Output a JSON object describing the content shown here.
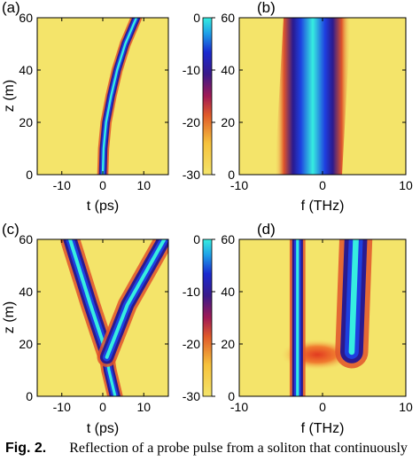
{
  "caption": {
    "label": "Fig. 2.",
    "text": "Reflection of a probe pulse from a soliton that continuously"
  },
  "chart_data": [
    {
      "type": "heatmap",
      "panel_label": "(a)",
      "xlabel": "t (ps)",
      "ylabel": "z (m)",
      "xlim": [
        -16,
        16
      ],
      "ylim": [
        0,
        60
      ],
      "xticks": [
        -10,
        0,
        10
      ],
      "yticks": [
        0,
        20,
        40,
        60
      ],
      "content": "Narrow soliton trace starting near t = 0 at z = 0 and curving to t ≈ 8 ps at z = 60 m",
      "traces": [
        {
          "name": "soliton",
          "points": [
            [
              0,
              0
            ],
            [
              0.2,
              10
            ],
            [
              0.8,
              20
            ],
            [
              2,
              30
            ],
            [
              3.5,
              40
            ],
            [
              5.5,
              50
            ],
            [
              8.2,
              60
            ]
          ],
          "width": 0.8
        }
      ]
    },
    {
      "type": "heatmap",
      "panel_label": "(b)",
      "xlabel": "f (THz)",
      "ylabel": "",
      "xlim": [
        -10,
        10
      ],
      "ylim": [
        0,
        60
      ],
      "xticks": [
        -10,
        0,
        10
      ],
      "yticks": [
        0,
        20,
        40,
        60
      ],
      "content": "Broad soliton spectrum centered near f = -1 THz at z = 0, drifting to about -3 THz at z = 60 m",
      "traces": [
        {
          "name": "soliton spectrum",
          "points": [
            [
              -0.5,
              0
            ],
            [
              -3.5,
              60
            ]
          ],
          "width": 7
        }
      ]
    },
    {
      "type": "heatmap",
      "panel_label": "(c)",
      "xlabel": "t (ps)",
      "ylabel": "z (m)",
      "xlim": [
        -16,
        16
      ],
      "ylim": [
        0,
        60
      ],
      "xticks": [
        -10,
        0,
        10
      ],
      "yticks": [
        0,
        20,
        40,
        60
      ],
      "colorbar": {
        "ticks": [
          0,
          -10,
          -20,
          -30
        ],
        "range": [
          -30,
          0
        ]
      },
      "content": "Soliton and reflected probe traces crossing near z ≈ 17 m",
      "traces": [
        {
          "name": "probe incident",
          "points": [
            [
              3,
              0
            ],
            [
              1.5,
              10
            ],
            [
              0.8,
              17
            ]
          ],
          "width": 1.2
        },
        {
          "name": "probe reflected",
          "points": [
            [
              0.8,
              17
            ],
            [
              -3,
              35
            ],
            [
              -8,
              60
            ]
          ],
          "width": 1.6
        },
        {
          "name": "soliton",
          "points": [
            [
              1,
              15
            ],
            [
              6,
              35
            ],
            [
              15,
              60
            ]
          ],
          "width": 1.6
        }
      ]
    },
    {
      "type": "heatmap",
      "panel_label": "(d)",
      "xlabel": "f (THz)",
      "ylabel": "",
      "xlim": [
        -10,
        10
      ],
      "ylim": [
        0,
        60
      ],
      "xticks": [
        -10,
        0,
        10
      ],
      "yticks": [
        0,
        20,
        40,
        60
      ],
      "content": "Probe spectrum shifting from f ≈ -3 THz to f ≈ 4 THz at z ≈ 17 m, soliton line near -3 THz",
      "traces": [
        {
          "name": "soliton line",
          "points": [
            [
              -3,
              0
            ],
            [
              -3,
              60
            ]
          ],
          "width": 0.6
        },
        {
          "name": "probe up-shifted",
          "points": [
            [
              3.5,
              17
            ],
            [
              4,
              60
            ]
          ],
          "width": 1.4
        }
      ]
    }
  ],
  "colorbar_top": {
    "ticks": [
      0,
      -10,
      -20,
      -30
    ],
    "range": [
      -30,
      0
    ]
  }
}
